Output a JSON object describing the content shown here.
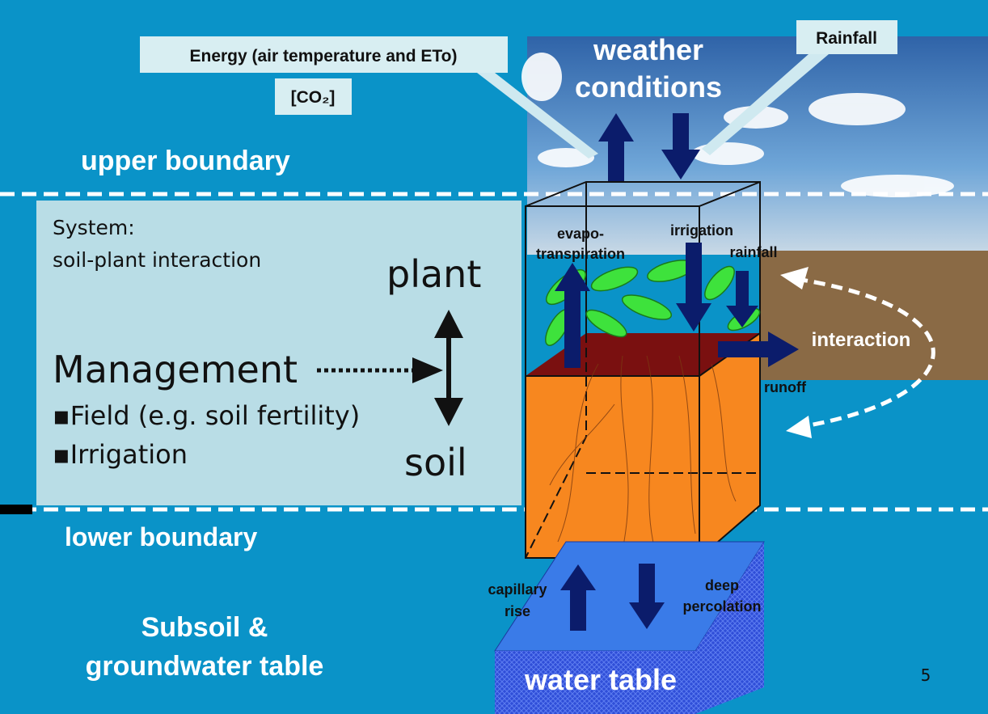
{
  "labels": {
    "energy": "Energy (air temperature and ETo)",
    "co2": "[CO₂]",
    "rainfall_top": "Rainfall",
    "weather": [
      "weather",
      "conditions"
    ],
    "upper_boundary": "upper boundary",
    "system": [
      "System:",
      "soil-plant interaction"
    ],
    "plant": "plant",
    "soil": "soil",
    "management": "Management",
    "bullets": [
      "▪Field (e.g. soil fertility)",
      "▪Irrigation"
    ],
    "evapotranspiration": [
      "evapo-",
      "transpiration"
    ],
    "irrigation": "irrigation",
    "rainfall": "rainfall",
    "interaction": "interaction",
    "runoff": "runoff",
    "lower_boundary": "lower boundary",
    "capillary": [
      "capillary",
      "rise"
    ],
    "deep": [
      "deep",
      "percolation"
    ],
    "subsoil": [
      "Subsoil &",
      "groundwater table"
    ],
    "water_table": "water table",
    "page_number": "5"
  }
}
